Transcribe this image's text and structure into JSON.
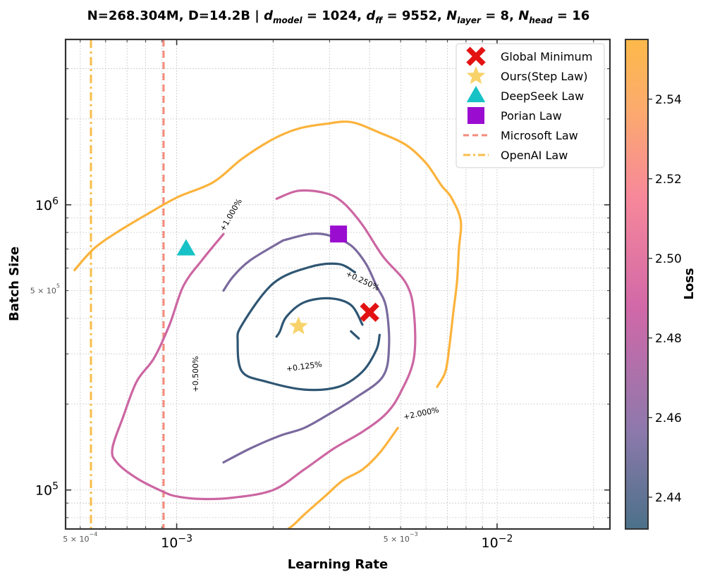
{
  "chart_data": {
    "type": "contour",
    "title": {
      "prefix": "N=268.304M, D=14.2B | ",
      "d_model_sym": "d",
      "d_model_sub": "model",
      "d_model_val": " = 1024, ",
      "d_ff_sym": "d",
      "d_ff_sub": "ff",
      "d_ff_val": " = 9552, ",
      "n_layer_sym": "N",
      "n_layer_sub": "layer",
      "n_layer_val": " = 8, ",
      "n_head_sym": "N",
      "n_head_sub": "head",
      "n_head_val": " = 16"
    },
    "xlabel": "Learning Rate",
    "ylabel": "Batch Size",
    "xscale": "log",
    "yscale": "log",
    "xlim": [
      0.00045,
      0.0225
    ],
    "ylim": [
      73000,
      3800000
    ],
    "x_major_ticks": [
      {
        "value": 0.001,
        "base": "10",
        "exp": "−3"
      },
      {
        "value": 0.01,
        "base": "10",
        "exp": "−2"
      }
    ],
    "x_minor_labels": [
      {
        "value": 0.0005,
        "mant": "5 × 10",
        "exp": "−4"
      },
      {
        "value": 0.005,
        "mant": "5 × 10",
        "exp": "−3"
      }
    ],
    "y_major_ticks": [
      {
        "value": 100000,
        "base": "10",
        "exp": "5"
      },
      {
        "value": 1000000,
        "base": "10",
        "exp": "6"
      }
    ],
    "y_minor_labels": [
      {
        "value": 500000,
        "mant": "5 × 10",
        "exp": "5"
      }
    ],
    "colorbar": {
      "label": "Loss",
      "min": 2.432,
      "max": 2.555,
      "ticks": [
        2.44,
        2.46,
        2.48,
        2.5,
        2.52,
        2.54
      ],
      "tick_labels": [
        "2.44",
        "2.46",
        "2.48",
        "2.50",
        "2.52",
        "2.54"
      ],
      "colors": [
        "#4b7189",
        "#8d79ac",
        "#d168a8",
        "#f7889a",
        "#fcab6c",
        "#fdb94a"
      ]
    },
    "contours": [
      {
        "label": "+0.125%",
        "color": "#2f5673",
        "label_pos": [
          0.0025,
          270000
        ],
        "label_angle": -8,
        "segments": [
          [
            [
              0.0038,
              380000
            ],
            [
              0.0035,
              445000
            ],
            [
              0.003,
              470000
            ],
            [
              0.0025,
              455000
            ],
            [
              0.0022,
              405000
            ],
            [
              0.0021,
              360000
            ],
            [
              0.00205,
              345000
            ]
          ],
          [
            [
              0.0037,
              340000
            ],
            [
              0.0035,
              360000
            ]
          ]
        ]
      },
      {
        "label": "+0.250%",
        "color": "#2f5673",
        "label_pos": [
          0.0038,
          540000
        ],
        "label_angle": 25,
        "segments": [
          [
            [
              0.0036,
              580000
            ],
            [
              0.0032,
              620000
            ],
            [
              0.0026,
              605000
            ],
            [
              0.002,
              530000
            ],
            [
              0.0016,
              380000
            ],
            [
              0.00155,
              330000
            ],
            [
              0.0016,
              260000
            ],
            [
              0.0019,
              240000
            ],
            [
              0.0025,
              225000
            ],
            [
              0.0032,
              230000
            ],
            [
              0.0038,
              260000
            ],
            [
              0.0042,
              310000
            ],
            [
              0.0043,
              350000
            ]
          ]
        ]
      },
      {
        "label": "+0.500%",
        "color": "#7a6a9e",
        "label_pos": [
          0.00115,
          255000
        ],
        "label_angle": -90,
        "segments": [
          [
            [
              0.00215,
              750000
            ],
            [
              0.0026,
              790000
            ],
            [
              0.003,
              780000
            ],
            [
              0.0035,
              720000
            ],
            [
              0.0039,
              620000
            ],
            [
              0.0042,
              520000
            ],
            [
              0.0045,
              440000
            ],
            [
              0.0046,
              320000
            ],
            [
              0.0044,
              250000
            ],
            [
              0.0036,
              210000
            ],
            [
              0.003,
              185000
            ],
            [
              0.0025,
              165000
            ],
            [
              0.0021,
              155000
            ],
            [
              0.0017,
              140000
            ],
            [
              0.0014,
              125000
            ]
          ],
          [
            [
              0.0014,
              500000
            ],
            [
              0.0015,
              560000
            ],
            [
              0.0017,
              640000
            ],
            [
              0.00215,
              750000
            ]
          ]
        ]
      },
      {
        "label": "+1.000%",
        "color": "#cc66a2",
        "label_pos": [
          0.00148,
          920000
        ],
        "label_angle": -60,
        "segments": [
          [
            [
              0.00205,
              1050000
            ],
            [
              0.0024,
              1120000
            ],
            [
              0.0029,
              1100000
            ],
            [
              0.0033,
              1020000
            ],
            [
              0.0038,
              850000
            ],
            [
              0.0044,
              660000
            ],
            [
              0.0052,
              530000
            ],
            [
              0.0055,
              420000
            ],
            [
              0.0055,
              290000
            ],
            [
              0.005,
              220000
            ],
            [
              0.0045,
              185000
            ],
            [
              0.0038,
              160000
            ],
            [
              0.0031,
              140000
            ],
            [
              0.0025,
              118000
            ],
            [
              0.002,
              100000
            ],
            [
              0.0015,
              94000
            ],
            [
              0.0012,
              93000
            ],
            [
              0.001,
              95000
            ],
            [
              0.0009,
              99000
            ],
            [
              0.00075,
              110000
            ],
            [
              0.00065,
              125000
            ],
            [
              0.00063,
              140000
            ],
            [
              0.00068,
              180000
            ],
            [
              0.00075,
              240000
            ],
            [
              0.00085,
              290000
            ],
            [
              0.00095,
              380000
            ],
            [
              0.00105,
              520000
            ],
            [
              0.0012,
              640000
            ],
            [
              0.0014,
              790000
            ]
          ]
        ]
      },
      {
        "label": "+2.000%",
        "color": "#fbb33c",
        "label_pos": [
          0.0058,
          185000
        ],
        "label_angle": -12,
        "segments": [
          [
            [
              0.0049,
              165000
            ],
            [
              0.0043,
              135000
            ],
            [
              0.0038,
              118000
            ],
            [
              0.0033,
              108000
            ],
            [
              0.0029,
              95000
            ],
            [
              0.0025,
              82000
            ],
            [
              0.0023,
              75000
            ],
            [
              0.0021,
              70000
            ]
          ],
          [
            [
              0.0065,
              230000
            ],
            [
              0.0069,
              260000
            ],
            [
              0.0071,
              320000
            ],
            [
              0.0073,
              420000
            ],
            [
              0.0075,
              540000
            ],
            [
              0.0076,
              700000
            ],
            [
              0.0077,
              880000
            ],
            [
              0.0072,
              1060000
            ],
            [
              0.0067,
              1170000
            ],
            [
              0.006,
              1400000
            ],
            [
              0.0052,
              1620000
            ],
            [
              0.0043,
              1790000
            ],
            [
              0.0035,
              1950000
            ],
            [
              0.0029,
              1920000
            ],
            [
              0.0024,
              1850000
            ],
            [
              0.002,
              1700000
            ],
            [
              0.0016,
              1450000
            ],
            [
              0.0013,
              1200000
            ],
            [
              0.001,
              1060000
            ],
            [
              0.0008,
              920000
            ],
            [
              0.00065,
              800000
            ],
            [
              0.00055,
              700000
            ],
            [
              0.00048,
              590000
            ]
          ]
        ]
      }
    ],
    "markers": [
      {
        "name": "Global Minimum",
        "shape": "x",
        "color": "#e31212",
        "x": 0.004,
        "y": 420000
      },
      {
        "name": "Ours(Step Law)",
        "shape": "star",
        "color": "#f7d36a",
        "x": 0.0024,
        "y": 375000
      },
      {
        "name": "DeepSeek Law",
        "shape": "triangle",
        "color": "#16c2c5",
        "x": 0.00107,
        "y": 700000
      },
      {
        "name": "Porian Law",
        "shape": "square",
        "color": "#9a0dd0",
        "x": 0.0032,
        "y": 790000
      }
    ],
    "reference_lines": [
      {
        "name": "Microsoft Law",
        "x": 0.00091,
        "style": "dashed",
        "color": "#f58a7a"
      },
      {
        "name": "OpenAI Law",
        "x": 0.00054,
        "style": "dashdot",
        "color": "#f7bd4a"
      }
    ],
    "legend_position": "top-right",
    "grid": true
  }
}
